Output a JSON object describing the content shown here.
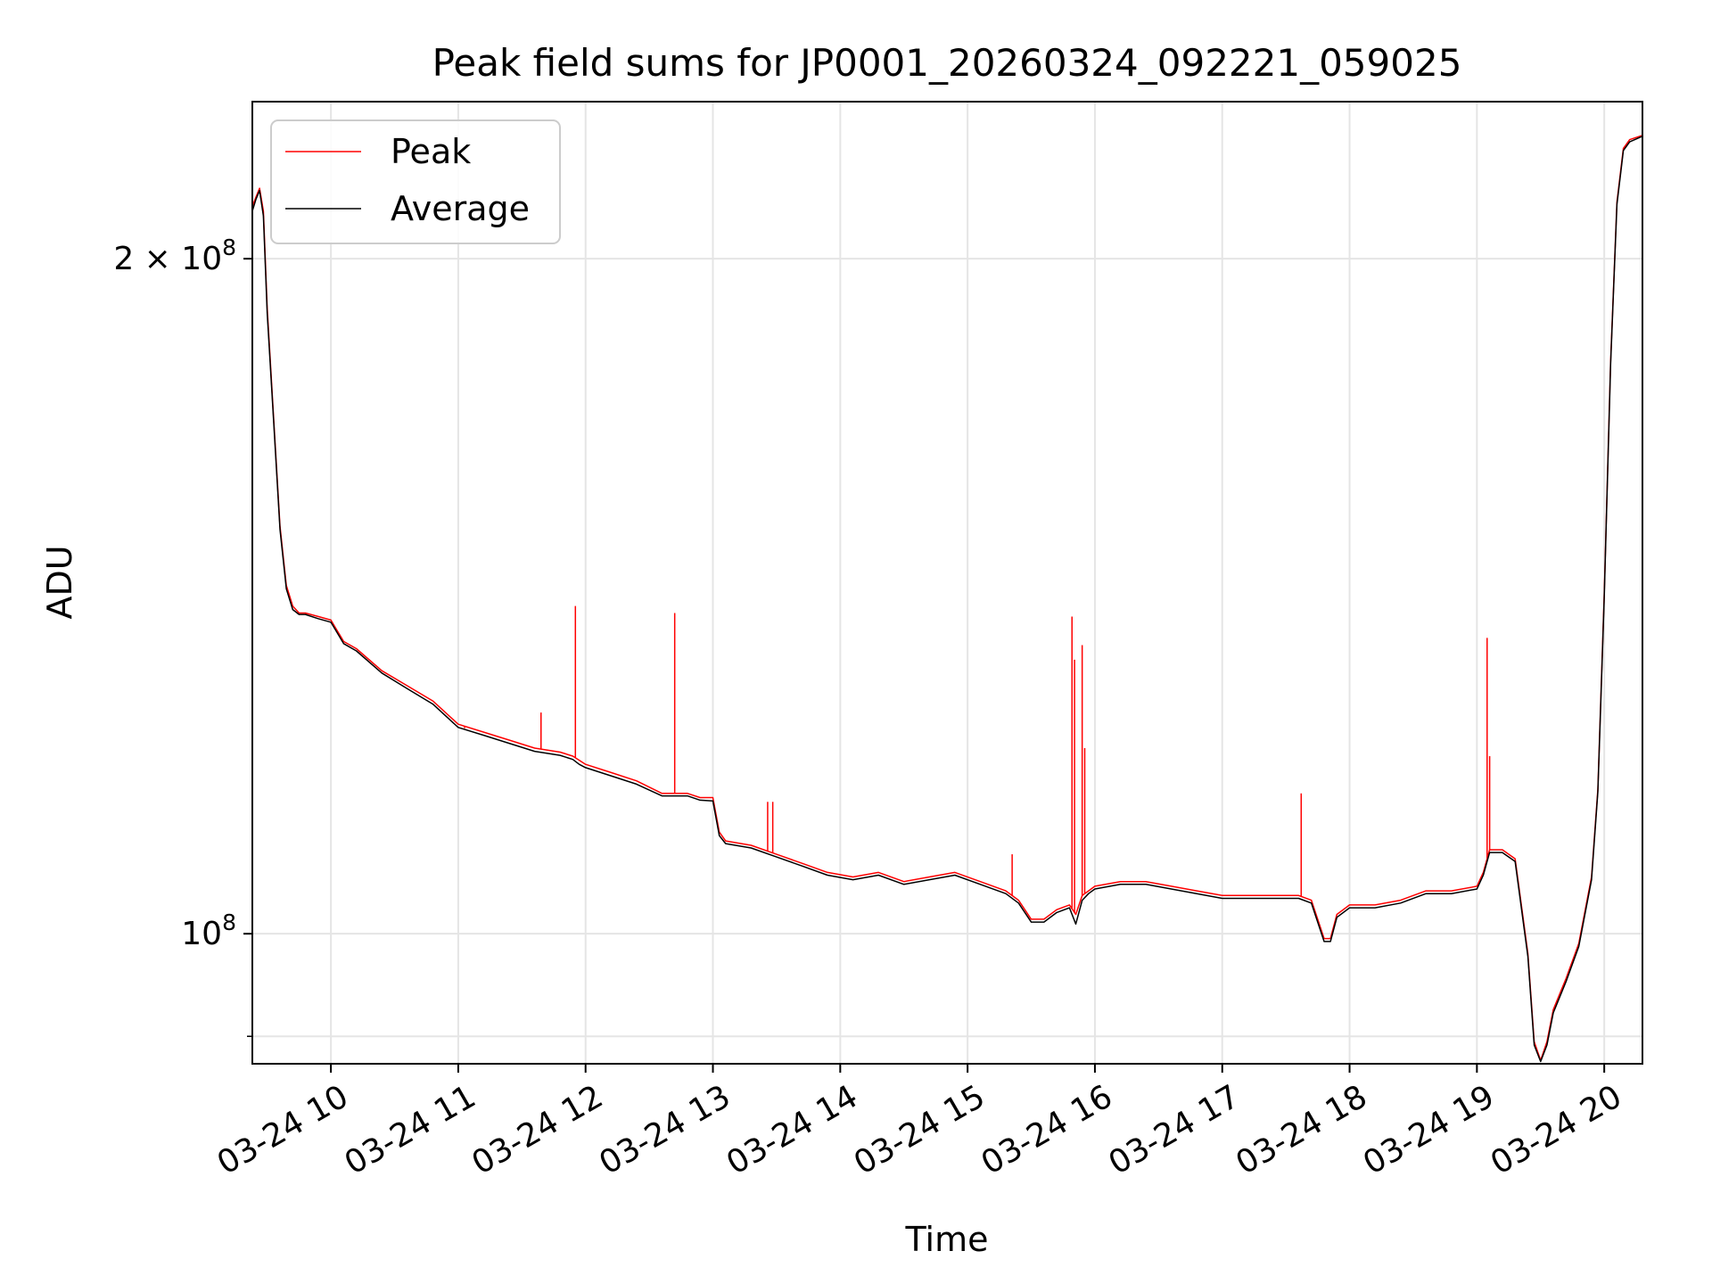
{
  "chart_data": {
    "type": "line",
    "title": "Peak field sums for JP0001_20260324_092221_059025",
    "xlabel": "Time",
    "ylabel": "ADU",
    "x_unit": "hour of day on 2026-03-24",
    "xlim": [
      9.383,
      20.3
    ],
    "ylim": [
      87500000,
      235000000
    ],
    "yscale": "log",
    "grid": true,
    "legend_position": "upper-left",
    "x_ticks": [
      {
        "value": 10,
        "label": "03-24 10"
      },
      {
        "value": 11,
        "label": "03-24 11"
      },
      {
        "value": 12,
        "label": "03-24 12"
      },
      {
        "value": 13,
        "label": "03-24 13"
      },
      {
        "value": 14,
        "label": "03-24 14"
      },
      {
        "value": 15,
        "label": "03-24 15"
      },
      {
        "value": 16,
        "label": "03-24 16"
      },
      {
        "value": 17,
        "label": "03-24 17"
      },
      {
        "value": 18,
        "label": "03-24 18"
      },
      {
        "value": 19,
        "label": "03-24 19"
      },
      {
        "value": 20,
        "label": "03-24 20"
      }
    ],
    "y_ticks": [
      {
        "value": 100000000,
        "mantissa": "",
        "exponent": "8",
        "label": "10^8"
      },
      {
        "value": 200000000,
        "mantissa": "2 × ",
        "exponent": "8",
        "label": "2 × 10^8"
      }
    ],
    "y_minor_ticks": [
      90000000
    ],
    "series": [
      {
        "name": "Peak",
        "color": "#ff0000",
        "x": [
          9.383,
          9.41,
          9.44,
          9.47,
          9.5,
          9.55,
          9.6,
          9.65,
          9.7,
          9.75,
          9.8,
          9.9,
          10.0,
          10.1,
          10.2,
          10.4,
          10.6,
          10.8,
          11.0,
          11.2,
          11.4,
          11.6,
          11.8,
          11.9,
          11.95,
          12.0,
          12.2,
          12.4,
          12.6,
          12.8,
          12.9,
          13.0,
          13.05,
          13.1,
          13.3,
          13.5,
          13.7,
          13.9,
          14.1,
          14.3,
          14.5,
          14.7,
          14.9,
          15.1,
          15.3,
          15.4,
          15.5,
          15.6,
          15.7,
          15.8,
          15.85,
          15.9,
          15.95,
          16.0,
          16.2,
          16.4,
          16.6,
          16.8,
          17.0,
          17.2,
          17.4,
          17.6,
          17.7,
          17.8,
          17.85,
          17.9,
          18.0,
          18.2,
          18.4,
          18.6,
          18.8,
          19.0,
          19.05,
          19.1,
          19.2,
          19.3,
          19.4,
          19.45,
          19.5,
          19.55,
          19.6,
          19.7,
          19.8,
          19.9,
          19.95,
          20.0,
          20.05,
          20.1,
          20.15,
          20.2,
          20.3
        ],
        "y": [
          211000000,
          213000000,
          215000000,
          210000000,
          190000000,
          170000000,
          152000000,
          143000000,
          140000000,
          139000000,
          139000000,
          138500000,
          138000000,
          135000000,
          134000000,
          131000000,
          129000000,
          127000000,
          124000000,
          123000000,
          122000000,
          121000000,
          120500000,
          120000000,
          119500000,
          119000000,
          118000000,
          117000000,
          115500000,
          115500000,
          115000000,
          115000000,
          111000000,
          110000000,
          109500000,
          108500000,
          107500000,
          106500000,
          106000000,
          106500000,
          105500000,
          106000000,
          106500000,
          105500000,
          104500000,
          103500000,
          101500000,
          101500000,
          102500000,
          103000000,
          102000000,
          104000000,
          104500000,
          105000000,
          105500000,
          105500000,
          105000000,
          104500000,
          104000000,
          104000000,
          104000000,
          104000000,
          103500000,
          99500000,
          99500000,
          102000000,
          103000000,
          103000000,
          103500000,
          104500000,
          104500000,
          105000000,
          106500000,
          109000000,
          109000000,
          108000000,
          98000000,
          89500000,
          87800000,
          89500000,
          92500000,
          95500000,
          99000000,
          106000000,
          116000000,
          142000000,
          180000000,
          212000000,
          224000000,
          226000000,
          227000000
        ],
        "spikes": [
          {
            "x": 11.05,
            "y": 123500000
          },
          {
            "x": 11.65,
            "y": 125500000
          },
          {
            "x": 11.92,
            "y": 140000000
          },
          {
            "x": 12.7,
            "y": 139000000
          },
          {
            "x": 13.43,
            "y": 114500000
          },
          {
            "x": 13.47,
            "y": 114500000
          },
          {
            "x": 15.35,
            "y": 108500000
          },
          {
            "x": 15.82,
            "y": 138500000
          },
          {
            "x": 15.84,
            "y": 132500000
          },
          {
            "x": 15.9,
            "y": 134500000
          },
          {
            "x": 15.92,
            "y": 121000000
          },
          {
            "x": 17.62,
            "y": 115500000
          },
          {
            "x": 19.08,
            "y": 135500000
          },
          {
            "x": 19.1,
            "y": 120000000
          }
        ]
      },
      {
        "name": "Average",
        "color": "#000000",
        "x": [
          9.383,
          9.41,
          9.44,
          9.47,
          9.5,
          9.55,
          9.6,
          9.65,
          9.7,
          9.75,
          9.8,
          9.9,
          10.0,
          10.1,
          10.2,
          10.4,
          10.6,
          10.8,
          11.0,
          11.2,
          11.4,
          11.6,
          11.8,
          11.9,
          11.95,
          12.0,
          12.2,
          12.4,
          12.6,
          12.8,
          12.9,
          13.0,
          13.05,
          13.1,
          13.3,
          13.5,
          13.7,
          13.9,
          14.1,
          14.3,
          14.5,
          14.7,
          14.9,
          15.1,
          15.3,
          15.4,
          15.5,
          15.6,
          15.7,
          15.8,
          15.85,
          15.9,
          15.95,
          16.0,
          16.2,
          16.4,
          16.6,
          16.8,
          17.0,
          17.2,
          17.4,
          17.6,
          17.7,
          17.8,
          17.85,
          17.9,
          18.0,
          18.2,
          18.4,
          18.6,
          18.8,
          19.0,
          19.05,
          19.1,
          19.2,
          19.3,
          19.4,
          19.45,
          19.5,
          19.55,
          19.6,
          19.7,
          19.8,
          19.9,
          19.95,
          20.0,
          20.05,
          20.1,
          20.15,
          20.2,
          20.3
        ],
        "y": [
          210000000,
          212500000,
          214500000,
          209000000,
          189000000,
          169500000,
          151500000,
          142500000,
          139500000,
          138800000,
          138800000,
          138200000,
          137700000,
          134700000,
          133700000,
          130700000,
          128600000,
          126600000,
          123600000,
          122600000,
          121600000,
          120600000,
          120100000,
          119600000,
          119000000,
          118600000,
          117600000,
          116600000,
          115200000,
          115200000,
          114700000,
          114600000,
          110600000,
          109700000,
          109200000,
          108200000,
          107200000,
          106200000,
          105700000,
          106200000,
          105200000,
          105700000,
          106200000,
          105200000,
          104200000,
          103200000,
          101200000,
          101200000,
          102200000,
          102700000,
          101000000,
          103500000,
          104200000,
          104700000,
          105200000,
          105200000,
          104700000,
          104200000,
          103700000,
          103700000,
          103700000,
          103700000,
          103200000,
          99200000,
          99200000,
          101700000,
          102700000,
          102700000,
          103200000,
          104200000,
          104200000,
          104700000,
          106200000,
          108700000,
          108700000,
          107700000,
          97700000,
          89200000,
          87700000,
          89200000,
          92200000,
          95200000,
          98700000,
          105700000,
          115700000,
          141500000,
          179500000,
          211500000,
          223500000,
          225500000,
          226800000
        ]
      }
    ]
  }
}
